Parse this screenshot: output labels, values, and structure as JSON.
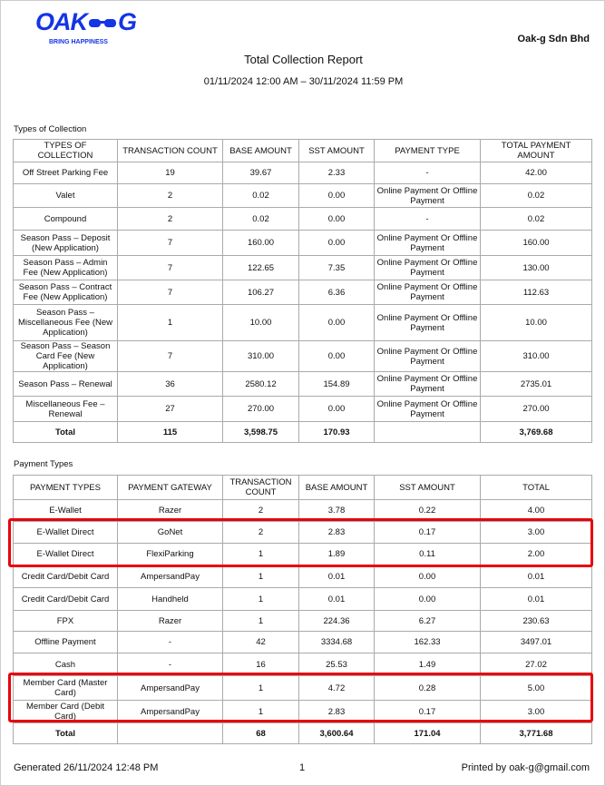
{
  "header": {
    "logo_left": "OAK",
    "logo_right": "G",
    "tagline": "BRING HAPPINESS",
    "company": "Oak-g Sdn Bhd",
    "title": "Total Collection Report",
    "date_range": "01/11/2024 12:00 AM – 30/11/2024 11:59 PM"
  },
  "collection": {
    "heading": "Types of Collection",
    "columns": [
      "TYPES OF COLLECTION",
      "TRANSACTION COUNT",
      "BASE AMOUNT",
      "SST AMOUNT",
      "PAYMENT TYPE",
      "TOTAL PAYMENT AMOUNT"
    ],
    "rows": [
      [
        "Off Street Parking Fee",
        "19",
        "39.67",
        "2.33",
        "-",
        "42.00"
      ],
      [
        "Valet",
        "2",
        "0.02",
        "0.00",
        "Online Payment Or Offline Payment",
        "0.02"
      ],
      [
        "Compound",
        "2",
        "0.02",
        "0.00",
        "-",
        "0.02"
      ],
      [
        "Season Pass – Deposit (New Application)",
        "7",
        "160.00",
        "0.00",
        "Online Payment Or Offline Payment",
        "160.00"
      ],
      [
        "Season Pass – Admin Fee (New Application)",
        "7",
        "122.65",
        "7.35",
        "Online Payment Or Offline Payment",
        "130.00"
      ],
      [
        "Season Pass – Contract Fee (New Application)",
        "7",
        "106.27",
        "6.36",
        "Online Payment Or Offline Payment",
        "112.63"
      ],
      [
        "Season Pass – Miscellaneous Fee (New Application)",
        "1",
        "10.00",
        "0.00",
        "Online Payment Or Offline Payment",
        "10.00"
      ],
      [
        "Season Pass – Season Card Fee (New Application)",
        "7",
        "310.00",
        "0.00",
        "Online Payment Or Offline Payment",
        "310.00"
      ],
      [
        "Season Pass – Renewal",
        "36",
        "2580.12",
        "154.89",
        "Online Payment Or Offline Payment",
        "2735.01"
      ],
      [
        "Miscellaneous Fee – Renewal",
        "27",
        "270.00",
        "0.00",
        "Online Payment Or Offline Payment",
        "270.00"
      ]
    ],
    "total": {
      "label": "Total",
      "transaction_count": "115",
      "base_amount": "3,598.75",
      "sst_amount": "170.93",
      "total_payment_amount": "3,769.68"
    }
  },
  "payment": {
    "heading": "Payment Types",
    "columns": [
      "PAYMENT TYPES",
      "PAYMENT GATEWAY",
      "TRANSACTION COUNT",
      "BASE AMOUNT",
      "SST AMOUNT",
      "TOTAL"
    ],
    "rows": [
      [
        "E-Wallet",
        "Razer",
        "2",
        "3.78",
        "0.22",
        "4.00"
      ],
      [
        "E-Wallet Direct",
        "GoNet",
        "2",
        "2.83",
        "0.17",
        "3.00"
      ],
      [
        "E-Wallet Direct",
        "FlexiParking",
        "1",
        "1.89",
        "0.11",
        "2.00"
      ],
      [
        "Credit Card/Debit Card",
        "AmpersandPay",
        "1",
        "0.01",
        "0.00",
        "0.01"
      ],
      [
        "Credit Card/Debit Card",
        "Handheld",
        "1",
        "0.01",
        "0.00",
        "0.01"
      ],
      [
        "FPX",
        "Razer",
        "1",
        "224.36",
        "6.27",
        "230.63"
      ],
      [
        "Offline Payment",
        "-",
        "42",
        "3334.68",
        "162.33",
        "3497.01"
      ],
      [
        "Cash",
        "-",
        "16",
        "25.53",
        "1.49",
        "27.02"
      ],
      [
        "Member Card (Master Card)",
        "AmpersandPay",
        "1",
        "4.72",
        "0.28",
        "5.00"
      ],
      [
        "Member Card (Debit Card)",
        "AmpersandPay",
        "1",
        "2.83",
        "0.17",
        "3.00"
      ]
    ],
    "total": {
      "label": "Total",
      "transaction_count": "68",
      "base_amount": "3,600.64",
      "sst_amount": "171.04",
      "total": "3,771.68"
    }
  },
  "footer": {
    "generated": "Generated 26/11/2024 12:48 PM",
    "page": "1",
    "printed": "Printed by oak-g@gmail.com"
  }
}
